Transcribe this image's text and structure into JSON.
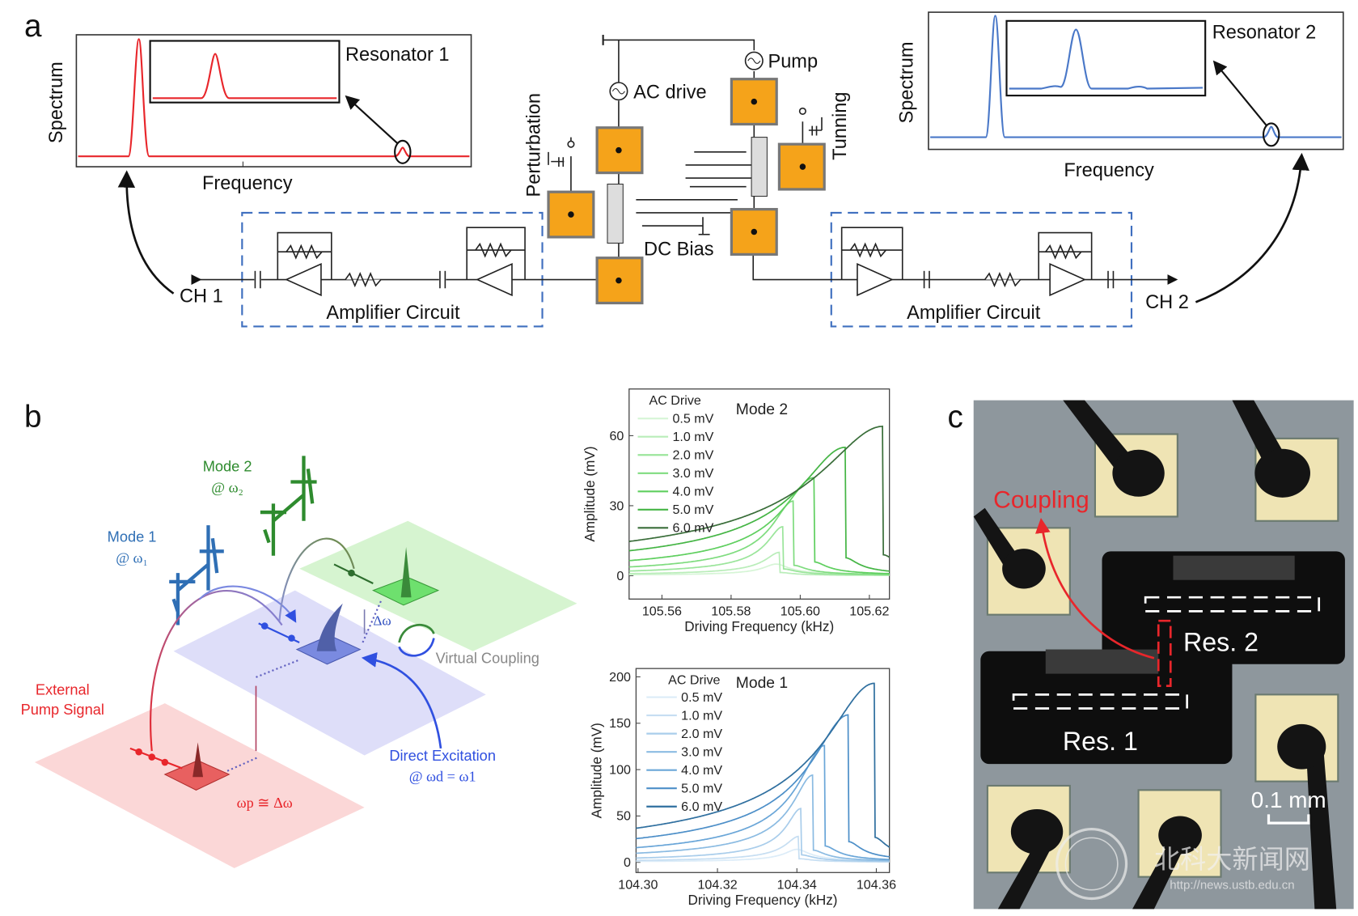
{
  "panels": {
    "a": {
      "letter": "a",
      "left_spectrum": {
        "ylabel": "Spectrum",
        "xlabel": "Frequency",
        "inset_label": "Resonator 1",
        "color": "#e8262b"
      },
      "right_spectrum": {
        "ylabel": "Spectrum",
        "xlabel": "Frequency",
        "inset_label": "Resonator 2",
        "color": "#4a78c8"
      },
      "circuit": {
        "ac_drive": "AC drive",
        "pump": "Pump",
        "perturbation": "Perturbation",
        "tuning": "Tunning",
        "dc_bias": "DC Bias",
        "amp_left": "Amplifier Circuit",
        "amp_right": "Amplifier Circuit",
        "ch1": "CH 1",
        "ch2": "CH 2",
        "pad_color": "#f5a31a",
        "amp_box_color": "#3f6fbf"
      }
    },
    "b": {
      "letter": "b",
      "mode2": "Mode 2",
      "mode2_freq": "@ ω₂",
      "mode1": "Mode 1",
      "mode1_freq": "@ ω₁",
      "external": "External",
      "pump_signal": "Pump Signal",
      "delta_omega": "Δω",
      "virtual_coupling": "Virtual Coupling",
      "direct_excitation": "Direct Excitation",
      "direct_freq": "@ ωd = ω1",
      "pump_freq": "ωp ≅ Δω",
      "colors": {
        "mode1": "#2f6fb5",
        "mode2": "#2e8b2e",
        "pump": "#e8262b",
        "virtual": "#888888"
      }
    },
    "c": {
      "letter": "c",
      "coupling": "Coupling",
      "res1": "Res. 1",
      "res2": "Res. 2",
      "scale": "0.1 mm",
      "watermark_cn": "北科大新闻网",
      "watermark_url": "http://news.ustb.edu.cn"
    }
  },
  "chart_data": [
    {
      "type": "line",
      "title": "Mode 2",
      "legend_title": "AC Drive",
      "legend_placement": "top-left",
      "xlabel": "Driving Frequency (kHz)",
      "ylabel": "Amplitude (mV)",
      "xlim": [
        105.5505,
        105.6258
      ],
      "ylim": [
        -10,
        80
      ],
      "xticks": [
        "105.56",
        "105.58",
        "105.60",
        "105.62"
      ],
      "yticks": [
        "0",
        "30",
        "60"
      ],
      "resonance_frequency": 105.593,
      "colors": [
        "#d6f5d6",
        "#b9edb9",
        "#9be59b",
        "#7fdc7f",
        "#5fcf5f",
        "#45b545",
        "#3a6e3a"
      ],
      "series": [
        {
          "name": "0.5 mV",
          "peak_amplitude": 5,
          "jump_frequency": 105.593
        },
        {
          "name": "1.0 mV",
          "peak_amplitude": 10,
          "jump_frequency": 105.594
        },
        {
          "name": "2.0 mV",
          "peak_amplitude": 21,
          "jump_frequency": 105.595
        },
        {
          "name": "3.0 mV",
          "peak_amplitude": 32,
          "jump_frequency": 105.598
        },
        {
          "name": "4.0 mV",
          "peak_amplitude": 42,
          "jump_frequency": 105.604
        },
        {
          "name": "5.0 mV",
          "peak_amplitude": 55,
          "jump_frequency": 105.613
        },
        {
          "name": "6.0 mV",
          "peak_amplitude": 64,
          "jump_frequency": 105.624
        }
      ]
    },
    {
      "type": "line",
      "title": "Mode 1",
      "legend_title": "AC Drive",
      "legend_placement": "top-left",
      "xlabel": "Driving Frequency (kHz)",
      "ylabel": "Amplitude (mV)",
      "xlim": [
        104.2995,
        104.3633
      ],
      "ylim": [
        -11,
        209
      ],
      "xticks": [
        "104.30",
        "104.32",
        "104.34",
        "104.36"
      ],
      "yticks": [
        "0",
        "50",
        "100",
        "150",
        "200"
      ],
      "resonance_frequency": 104.34,
      "colors": [
        "#dcecf8",
        "#c6def2",
        "#a9cdeb",
        "#8bbbe2",
        "#6aa6d8",
        "#4d8fc8",
        "#2f6f9f"
      ],
      "series": [
        {
          "name": "0.5 mV",
          "peak_amplitude": 14,
          "jump_frequency": 104.34
        },
        {
          "name": "1.0 mV",
          "peak_amplitude": 28,
          "jump_frequency": 104.3405
        },
        {
          "name": "2.0 mV",
          "peak_amplitude": 58,
          "jump_frequency": 104.341
        },
        {
          "name": "3.0 mV",
          "peak_amplitude": 94,
          "jump_frequency": 104.344
        },
        {
          "name": "4.0 mV",
          "peak_amplitude": 126,
          "jump_frequency": 104.347
        },
        {
          "name": "5.0 mV",
          "peak_amplitude": 159,
          "jump_frequency": 104.353
        },
        {
          "name": "6.0 mV",
          "peak_amplitude": 193,
          "jump_frequency": 104.3595
        }
      ]
    }
  ]
}
